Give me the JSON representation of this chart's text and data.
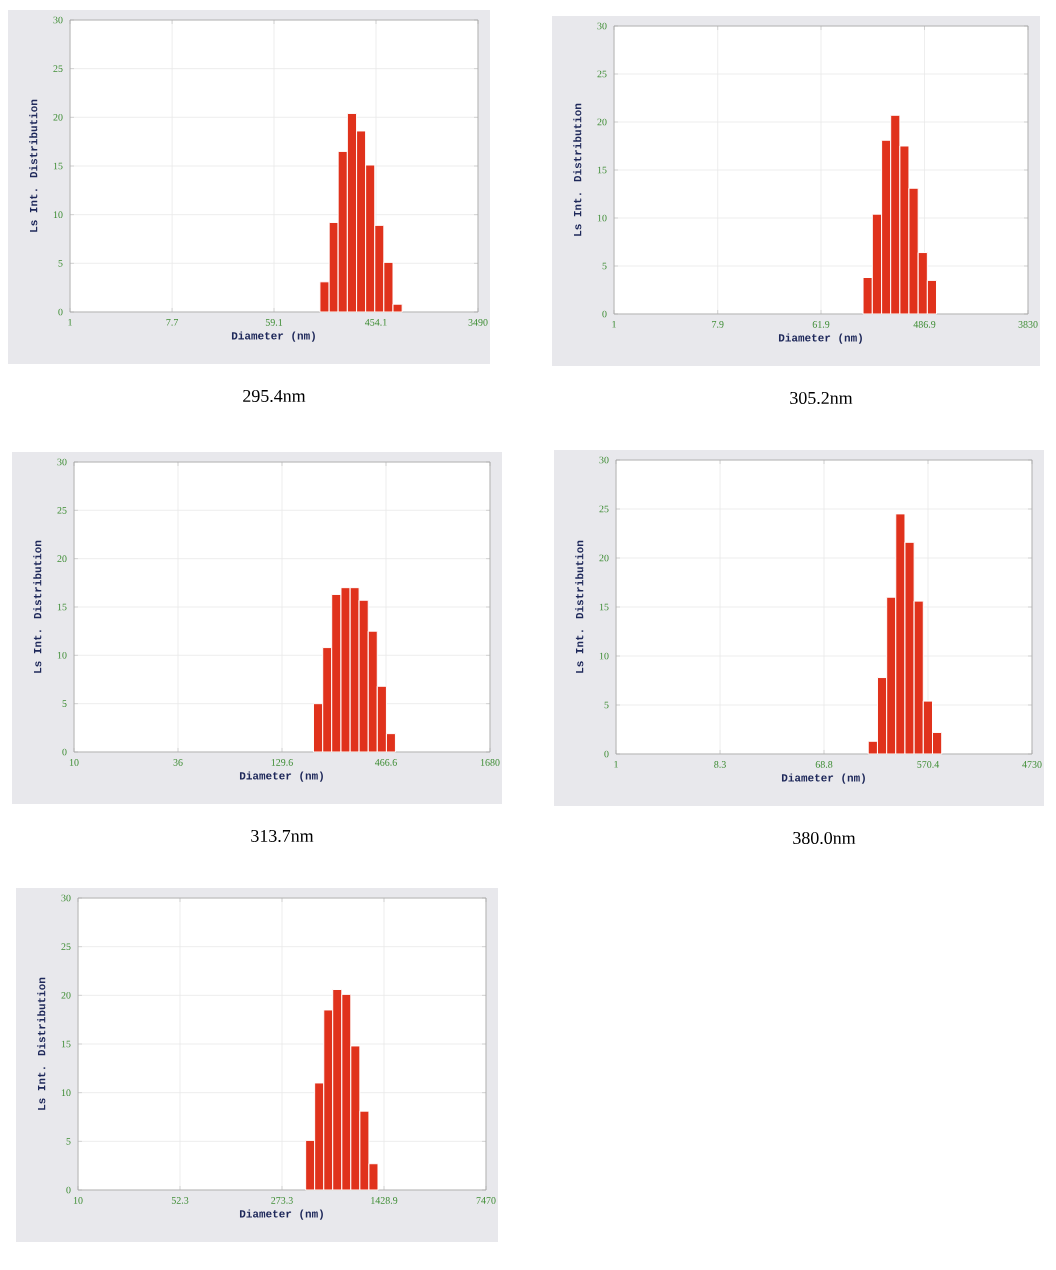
{
  "chart_data": [
    {
      "type": "histogram",
      "xlabel": "Diameter (nm)",
      "ylabel": "Ls Int. Distribution",
      "log": "x",
      "grid": true,
      "color": "#e0321c",
      "bins": [
        148,
        178,
        213,
        256,
        308,
        369,
        443,
        531,
        638,
        766
      ],
      "values": [
        3.1,
        9.2,
        16.5,
        20.4,
        18.6,
        15.1,
        8.9,
        5.1,
        0.8
      ],
      "xlim": [
        1,
        3490
      ],
      "xticks": [
        1,
        7.7,
        59.1,
        454.1,
        3490
      ],
      "ylim": [
        0,
        30
      ],
      "yticks": [
        0,
        5,
        10,
        15,
        20,
        25,
        30
      ],
      "annotations": [
        "295.4nm"
      ]
    },
    {
      "type": "histogram",
      "xlabel": "Diameter (nm)",
      "ylabel": "Ls Int. Distribution",
      "log": "x",
      "grid": true,
      "color": "#e0321c",
      "bins": [
        143,
        172,
        207,
        248,
        298,
        357,
        429,
        515,
        618
      ],
      "values": [
        3.8,
        10.4,
        18.1,
        20.7,
        17.5,
        13.1,
        6.4,
        3.5
      ],
      "xlim": [
        1,
        3830
      ],
      "xticks": [
        1,
        7.9,
        61.9,
        486.9,
        3830
      ],
      "ylim": [
        0,
        30
      ],
      "yticks": [
        0,
        5,
        10,
        15,
        20,
        25,
        30
      ],
      "annotations": [
        "305.2nm"
      ]
    },
    {
      "type": "histogram",
      "xlabel": "Diameter (nm)",
      "ylabel": "Ls Int. Distribution",
      "log": "x",
      "grid": true,
      "color": "#e0321c",
      "bins": [
        191,
        214,
        239,
        268,
        300,
        335,
        375,
        419,
        469,
        524
      ],
      "values": [
        5.0,
        10.8,
        16.3,
        17.0,
        17.0,
        15.7,
        12.5,
        6.8,
        1.9
      ],
      "xlim": [
        10,
        1680
      ],
      "xticks": [
        10,
        36,
        129.6,
        466.6,
        1680
      ],
      "ylim": [
        0,
        30
      ],
      "yticks": [
        0,
        5,
        10,
        15,
        20,
        25,
        30
      ],
      "annotations": [
        "313.7nm"
      ]
    },
    {
      "type": "histogram",
      "xlabel": "Diameter (nm)",
      "ylabel": "Ls Int. Distribution",
      "log": "x",
      "grid": true,
      "color": "#e0321c",
      "bins": [
        169,
        204,
        246,
        296,
        357,
        430,
        518,
        625,
        754
      ],
      "values": [
        1.3,
        7.8,
        16.0,
        24.5,
        21.6,
        15.6,
        5.4,
        2.2
      ],
      "xlim": [
        1,
        4730
      ],
      "xticks": [
        1,
        8.3,
        68.8,
        570.4,
        4730
      ],
      "ylim": [
        0,
        30
      ],
      "yticks": [
        0,
        5,
        10,
        15,
        20,
        25,
        30
      ],
      "annotations": [
        "380.0nm"
      ]
    },
    {
      "type": "histogram",
      "xlabel": "Diameter (nm)",
      "ylabel": "Ls Int. Distribution",
      "log": "x",
      "grid": true,
      "color": "#e0321c",
      "bins": [
        401,
        464,
        538,
        622,
        721,
        834,
        966,
        1119,
        1296
      ],
      "values": [
        5.1,
        11.0,
        18.5,
        20.6,
        20.1,
        14.8,
        8.1,
        2.7
      ],
      "xlim": [
        10,
        7470
      ],
      "xticks": [
        10,
        52.3,
        273.3,
        1428.9,
        7470
      ],
      "ylim": [
        0,
        30
      ],
      "yticks": [
        0,
        5,
        10,
        15,
        20,
        25,
        30
      ]
    }
  ]
}
